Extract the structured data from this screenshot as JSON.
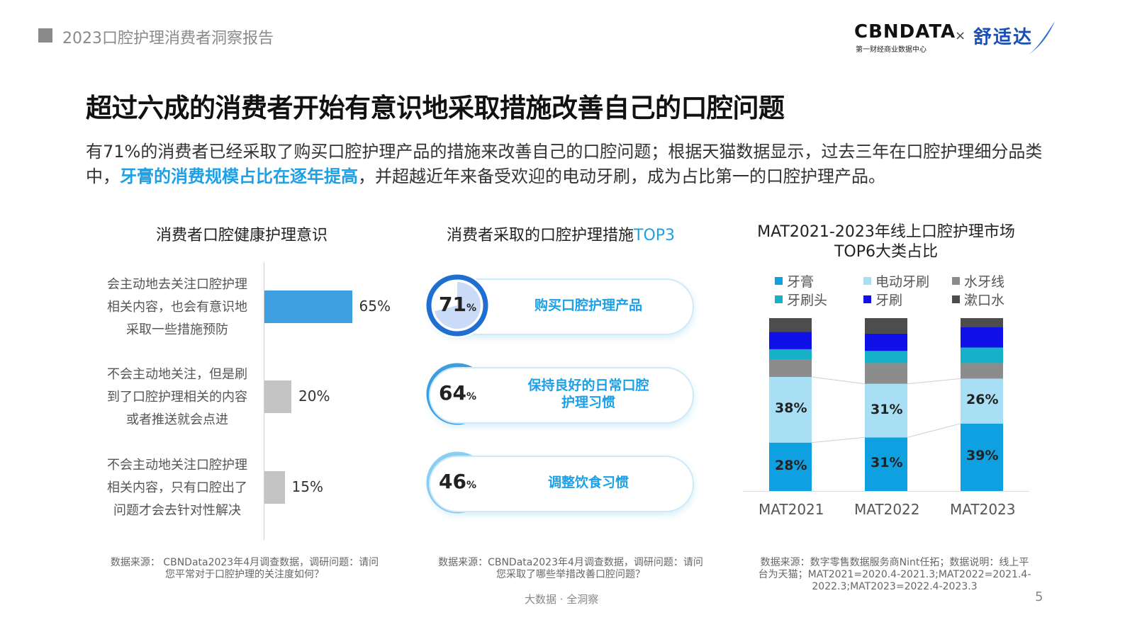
{
  "header": {
    "report_title": "2023口腔护理消费者洞察报告",
    "logo_cbn": "CBNDATA",
    "logo_cbn_sub": "第一财经商业数据中心",
    "logo_x": "×",
    "logo_brand": "舒适达"
  },
  "title": "超过六成的消费者开始有意识地采取措施改善自己的口腔问题",
  "intro": {
    "part1": "有71%的消费者已经采取了购买口腔护理产品的措施来改善自己的口腔问题；根据天猫数据显示，过去三年在口腔护理细分品类中，",
    "highlight": "牙膏的消费规模占比在逐年提高",
    "part2": "，并超越近年来备受欢迎的电动牙刷，成为占比第一的口腔护理产品。"
  },
  "chart1": {
    "title": "消费者口腔健康护理意识",
    "items": [
      {
        "label_lines": [
          "会主动地去关注口腔护理",
          "相关内容，也会有意识地",
          "采取一些措施预防"
        ],
        "value": 65,
        "value_label": "65%",
        "color": "#3d9fe0"
      },
      {
        "label_lines": [
          "不会主动地关注，但是刷",
          "到了口腔护理相关的内容",
          "或者推送就会点进"
        ],
        "value": 20,
        "value_label": "20%",
        "color": "#c4c4c4"
      },
      {
        "label_lines": [
          "不会主动地关注口腔护理",
          "相关内容，只有口腔出了",
          "问题才会去针对性解决"
        ],
        "value": 15,
        "value_label": "15%",
        "color": "#c4c4c4"
      }
    ],
    "source_lines": [
      "数据来源： CBNData2023年4月调查数据，调研问题：请问",
      "您平常对于口腔护理的关注度如何？"
    ]
  },
  "chart2": {
    "title_main": "消费者采取的口腔护理措施",
    "title_accent": "TOP3",
    "items": [
      {
        "value": 71,
        "num": "71",
        "unit": "%",
        "label_lines": [
          "购买口腔护理产品"
        ],
        "ring_color": "#1f6fd0",
        "fill_color": "#c9dbf6"
      },
      {
        "value": 64,
        "num": "64",
        "unit": "%",
        "label_lines": [
          "保持良好的日常口腔",
          "护理习惯"
        ],
        "ring_color": "#3d9fe0",
        "fill_color": "#d2e8f8"
      },
      {
        "value": 46,
        "num": "46",
        "unit": "%",
        "label_lines": [
          "调整饮食习惯"
        ],
        "ring_color": "#8fd0f0",
        "fill_color": "#e2f3fb"
      }
    ],
    "source_lines": [
      "数据来源：CBNData2023年4月调查数据，调研问题：请问",
      "您采取了哪些举措改善口腔问题？"
    ]
  },
  "chart3": {
    "title_lines": [
      "MAT2021-2023年线上口腔护理市场",
      "TOP6大类占比"
    ],
    "legend": [
      {
        "name": "牙膏",
        "color": "#0ea0e0"
      },
      {
        "name": "电动牙刷",
        "color": "#a8dff5"
      },
      {
        "name": "水牙线",
        "color": "#8c8c8c"
      },
      {
        "name": "牙刷头",
        "color": "#16b0c8"
      },
      {
        "name": "牙刷",
        "color": "#1010e8"
      },
      {
        "name": "漱口水",
        "color": "#4d4d4d"
      }
    ],
    "source_lines": [
      "数据来源：数字零售数据服务商Nint任拓；数据说明：线上平",
      "台为天猫；MAT2021=2020.4-2021.3;MAT2022=2021.4-",
      "2022.3;MAT2023=2022.4-2023.3"
    ]
  },
  "chart_data": {
    "type": "bar",
    "stacked": true,
    "normalized": true,
    "categories": [
      "MAT2021",
      "MAT2022",
      "MAT2023"
    ],
    "series": [
      {
        "name": "牙膏",
        "values": [
          28,
          31,
          39
        ],
        "labels": [
          "28%",
          "31%",
          "39%"
        ]
      },
      {
        "name": "电动牙刷",
        "values": [
          38,
          31,
          26
        ],
        "labels": [
          "38%",
          "31%",
          "26%"
        ]
      },
      {
        "name": "水牙线",
        "values": [
          10,
          12,
          9
        ]
      },
      {
        "name": "牙刷头",
        "values": [
          6,
          7,
          9
        ]
      },
      {
        "name": "牙刷",
        "values": [
          10,
          10,
          12
        ]
      },
      {
        "name": "漱口水",
        "values": [
          8,
          9,
          5
        ]
      }
    ],
    "ylim": [
      0,
      100
    ],
    "grid": false,
    "legend_position": "top"
  },
  "footer": {
    "center_text": "大数据 · 全洞察",
    "page_number": "5"
  }
}
